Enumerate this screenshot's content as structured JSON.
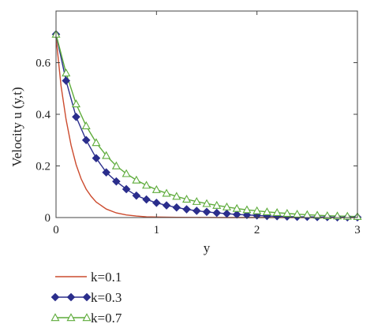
{
  "chart_data": {
    "type": "line",
    "xlabel": "y",
    "ylabel": "Velocity u (y,t)",
    "xlim": [
      0,
      3
    ],
    "ylim": [
      0,
      0.8
    ],
    "x_ticks": [
      "0",
      "1",
      "2",
      "3"
    ],
    "y_ticks": [
      "0",
      "0.2",
      "0.4",
      "0.6"
    ],
    "grid": false,
    "legend_position": "below",
    "series": [
      {
        "name": "k=0.1",
        "color": "#cc4b2e",
        "marker": "none",
        "x": [
          0,
          0.05,
          0.1,
          0.15,
          0.2,
          0.25,
          0.3,
          0.35,
          0.4,
          0.5,
          0.6,
          0.7,
          0.8,
          0.9,
          1.0,
          1.2,
          1.4,
          1.7,
          2.0,
          2.5,
          3.0
        ],
        "values": [
          0.7,
          0.51,
          0.38,
          0.28,
          0.205,
          0.15,
          0.11,
          0.082,
          0.06,
          0.033,
          0.018,
          0.01,
          0.006,
          0.003,
          0.002,
          0.001,
          0.0005,
          0,
          0,
          0,
          0
        ]
      },
      {
        "name": "k=0.3",
        "color": "#2b2e8c",
        "marker": "diamond",
        "x": [
          0,
          0.1,
          0.2,
          0.3,
          0.4,
          0.5,
          0.6,
          0.7,
          0.8,
          0.9,
          1.0,
          1.1,
          1.2,
          1.3,
          1.4,
          1.5,
          1.6,
          1.7,
          1.8,
          1.9,
          2.0,
          2.1,
          2.2,
          2.3,
          2.4,
          2.5,
          2.6,
          2.7,
          2.8,
          2.9,
          3.0
        ],
        "values": [
          0.71,
          0.53,
          0.39,
          0.3,
          0.23,
          0.175,
          0.14,
          0.11,
          0.085,
          0.07,
          0.057,
          0.047,
          0.039,
          0.032,
          0.026,
          0.022,
          0.018,
          0.015,
          0.012,
          0.01,
          0.008,
          0.006,
          0.005,
          0.004,
          0.003,
          0.003,
          0.002,
          0.002,
          0.001,
          0.001,
          0.001
        ]
      },
      {
        "name": "k=0.7",
        "color": "#5dab3a",
        "marker": "triangle",
        "x": [
          0,
          0.1,
          0.2,
          0.3,
          0.4,
          0.5,
          0.6,
          0.7,
          0.8,
          0.9,
          1.0,
          1.1,
          1.2,
          1.3,
          1.4,
          1.5,
          1.6,
          1.7,
          1.8,
          1.9,
          2.0,
          2.1,
          2.2,
          2.3,
          2.4,
          2.5,
          2.6,
          2.7,
          2.8,
          2.9,
          3.0
        ],
        "values": [
          0.71,
          0.56,
          0.44,
          0.355,
          0.29,
          0.24,
          0.2,
          0.17,
          0.145,
          0.125,
          0.108,
          0.094,
          0.082,
          0.071,
          0.062,
          0.054,
          0.047,
          0.041,
          0.035,
          0.03,
          0.026,
          0.022,
          0.019,
          0.016,
          0.013,
          0.011,
          0.009,
          0.007,
          0.006,
          0.005,
          0.004
        ]
      }
    ]
  }
}
